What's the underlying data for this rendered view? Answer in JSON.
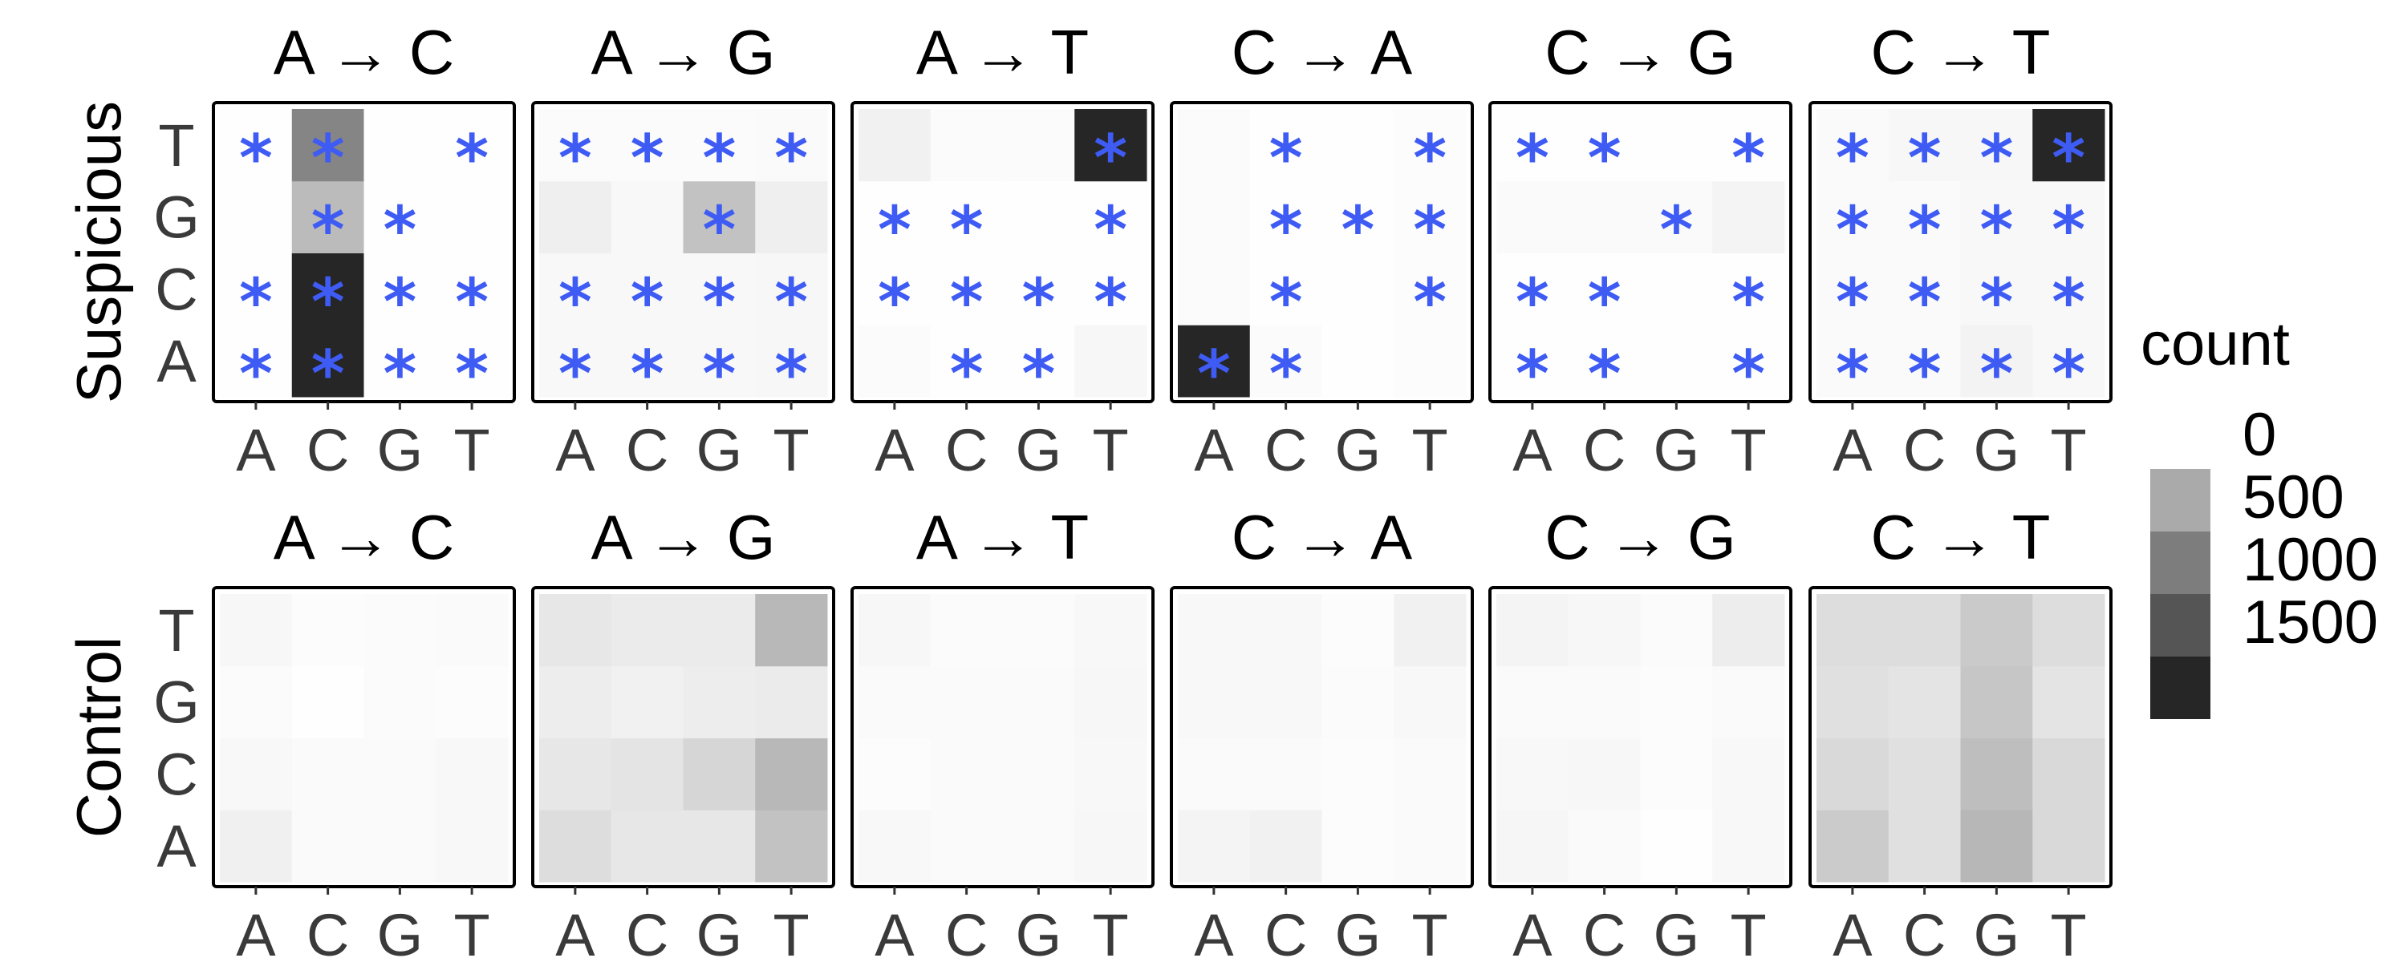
{
  "chart_data": {
    "type": "heatmap",
    "facet_titles": [
      "A → C",
      "A → G",
      "A → T",
      "C → A",
      "C → G",
      "C → T"
    ],
    "row_labels": [
      "Suspicious",
      "Control"
    ],
    "x_categories": [
      "A",
      "C",
      "G",
      "T"
    ],
    "y_categories": [
      "A",
      "C",
      "G",
      "T"
    ],
    "legend": {
      "title": "count",
      "position": "right",
      "breaks": [
        0,
        500,
        1000,
        1500
      ],
      "labels": [
        "0",
        "500",
        "1000",
        "1500"
      ],
      "colors": [
        "#aaaaaa",
        "#7d7d7d",
        "#555555",
        "#262626"
      ]
    },
    "color_scale": {
      "low": "#ffffff",
      "high": "#262626",
      "min": 0,
      "max": 1600
    },
    "significance_marker": {
      "symbol": "*",
      "color": "#3e5bf4"
    },
    "panel_border_color": "#000000",
    "panels": {
      "Suspicious": [
        {
          "title": "A → C",
          "grid": [
            [
              5,
              1600,
              5,
              5
            ],
            [
              5,
              1600,
              5,
              5
            ],
            [
              5,
              500,
              5,
              5
            ],
            [
              5,
              900,
              5,
              5
            ]
          ],
          "stars": [
            [
              1,
              1,
              1,
              1
            ],
            [
              1,
              1,
              1,
              1
            ],
            [
              0,
              1,
              1,
              0
            ],
            [
              1,
              1,
              0,
              1
            ]
          ]
        },
        {
          "title": "A → G",
          "grid": [
            [
              50,
              50,
              50,
              60
            ],
            [
              50,
              50,
              50,
              60
            ],
            [
              120,
              50,
              450,
              120
            ],
            [
              30,
              30,
              30,
              40
            ]
          ],
          "stars": [
            [
              1,
              1,
              1,
              1
            ],
            [
              1,
              1,
              1,
              1
            ],
            [
              0,
              0,
              1,
              0
            ],
            [
              1,
              1,
              1,
              1
            ]
          ]
        },
        {
          "title": "A → T",
          "grid": [
            [
              30,
              10,
              10,
              60
            ],
            [
              10,
              10,
              10,
              10
            ],
            [
              10,
              10,
              10,
              10
            ],
            [
              100,
              30,
              30,
              1600
            ]
          ],
          "stars": [
            [
              0,
              1,
              1,
              0
            ],
            [
              1,
              1,
              1,
              1
            ],
            [
              1,
              1,
              0,
              1
            ],
            [
              0,
              0,
              0,
              1
            ]
          ]
        },
        {
          "title": "C → A",
          "grid": [
            [
              1600,
              30,
              5,
              20
            ],
            [
              30,
              10,
              5,
              20
            ],
            [
              30,
              10,
              5,
              20
            ],
            [
              30,
              10,
              5,
              20
            ]
          ],
          "stars": [
            [
              1,
              1,
              0,
              0
            ],
            [
              0,
              1,
              0,
              1
            ],
            [
              0,
              1,
              1,
              1
            ],
            [
              0,
              1,
              0,
              1
            ]
          ]
        },
        {
          "title": "C → G",
          "grid": [
            [
              5,
              5,
              5,
              5
            ],
            [
              5,
              5,
              5,
              5
            ],
            [
              40,
              40,
              40,
              80
            ],
            [
              5,
              5,
              5,
              5
            ]
          ],
          "stars": [
            [
              1,
              1,
              0,
              1
            ],
            [
              1,
              1,
              0,
              1
            ],
            [
              0,
              0,
              1,
              0
            ],
            [
              1,
              1,
              0,
              1
            ]
          ]
        },
        {
          "title": "C → T",
          "grid": [
            [
              40,
              40,
              90,
              50
            ],
            [
              40,
              40,
              50,
              50
            ],
            [
              40,
              40,
              50,
              50
            ],
            [
              40,
              60,
              60,
              1600
            ]
          ],
          "stars": [
            [
              1,
              1,
              1,
              1
            ],
            [
              1,
              1,
              1,
              1
            ],
            [
              1,
              1,
              1,
              1
            ],
            [
              1,
              1,
              1,
              1
            ]
          ]
        }
      ],
      "Control": [
        {
          "title": "A → C",
          "grid": [
            [
              110,
              40,
              40,
              50
            ],
            [
              50,
              40,
              40,
              50
            ],
            [
              30,
              10,
              30,
              20
            ],
            [
              60,
              20,
              30,
              40
            ]
          ],
          "stars": [
            [
              0,
              0,
              0,
              0
            ],
            [
              0,
              0,
              0,
              0
            ],
            [
              0,
              0,
              0,
              0
            ],
            [
              0,
              0,
              0,
              0
            ]
          ]
        },
        {
          "title": "A → G",
          "grid": [
            [
              250,
              180,
              180,
              450
            ],
            [
              180,
              200,
              300,
              520
            ],
            [
              130,
              100,
              130,
              150
            ],
            [
              180,
              150,
              150,
              520
            ]
          ],
          "stars": [
            [
              0,
              0,
              0,
              0
            ],
            [
              0,
              0,
              0,
              0
            ],
            [
              0,
              0,
              0,
              0
            ],
            [
              0,
              0,
              0,
              0
            ]
          ]
        },
        {
          "title": "A → T",
          "grid": [
            [
              50,
              40,
              40,
              60
            ],
            [
              20,
              40,
              40,
              50
            ],
            [
              40,
              40,
              40,
              60
            ],
            [
              60,
              30,
              30,
              50
            ]
          ],
          "stars": [
            [
              0,
              0,
              0,
              0
            ],
            [
              0,
              0,
              0,
              0
            ],
            [
              0,
              0,
              0,
              0
            ],
            [
              0,
              0,
              0,
              0
            ]
          ]
        },
        {
          "title": "C → A",
          "grid": [
            [
              80,
              100,
              20,
              40
            ],
            [
              40,
              40,
              20,
              40
            ],
            [
              50,
              50,
              30,
              50
            ],
            [
              50,
              50,
              20,
              100
            ]
          ],
          "stars": [
            [
              0,
              0,
              0,
              0
            ],
            [
              0,
              0,
              0,
              0
            ],
            [
              0,
              0,
              0,
              0
            ],
            [
              0,
              0,
              0,
              0
            ]
          ]
        },
        {
          "title": "C → G",
          "grid": [
            [
              70,
              40,
              10,
              50
            ],
            [
              50,
              60,
              20,
              50
            ],
            [
              40,
              40,
              20,
              40
            ],
            [
              80,
              60,
              30,
              130
            ]
          ],
          "stars": [
            [
              0,
              0,
              0,
              0
            ],
            [
              0,
              0,
              0,
              0
            ],
            [
              0,
              0,
              0,
              0
            ],
            [
              0,
              0,
              0,
              0
            ]
          ]
        },
        {
          "title": "C → T",
          "grid": [
            [
              380,
              230,
              530,
              280
            ],
            [
              280,
              230,
              480,
              280
            ],
            [
              230,
              200,
              420,
              200
            ],
            [
              250,
              250,
              390,
              250
            ]
          ],
          "stars": [
            [
              0,
              0,
              0,
              0
            ],
            [
              0,
              0,
              0,
              0
            ],
            [
              0,
              0,
              0,
              0
            ],
            [
              0,
              0,
              0,
              0
            ]
          ]
        }
      ]
    }
  }
}
